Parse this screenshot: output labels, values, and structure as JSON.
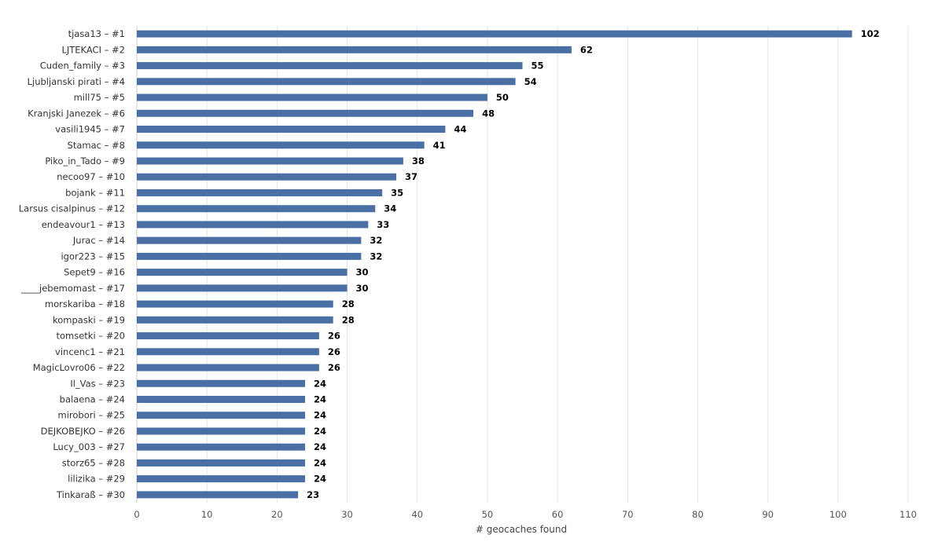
{
  "chart_data": {
    "type": "bar",
    "orientation": "horizontal",
    "categories": [
      "tjasa13 – #1",
      "LJTEKACI – #2",
      "Cuden_family – #3",
      "Ljubljanski pirati – #4",
      "mill75 – #5",
      "Kranjski Janezek – #6",
      "vasili1945 – #7",
      "Stamac – #8",
      "Piko_in_Tado – #9",
      "necoo97 – #10",
      "bojank – #11",
      "Larsus cisalpinus – #12",
      "endeavour1 – #13",
      "Jurac – #14",
      "igor223 – #15",
      "Sepet9 – #16",
      "____jebemomast – #17",
      "morskariba – #18",
      "kompaski – #19",
      "tomsetki – #20",
      "vincenc1 – #21",
      "MagicLovro06 – #22",
      "Il_Vas – #23",
      "balaena – #24",
      "mirobori – #25",
      "DEJKOBEJKO – #26",
      "Lucy_003 – #27",
      "storz65 – #28",
      "lilizika – #29",
      "Tinkaraß – #30"
    ],
    "values": [
      102,
      62,
      55,
      54,
      50,
      48,
      44,
      41,
      38,
      37,
      35,
      34,
      33,
      32,
      32,
      30,
      30,
      28,
      28,
      26,
      26,
      26,
      24,
      24,
      24,
      24,
      24,
      24,
      24,
      23
    ],
    "xlabel": "# geocaches found",
    "xlim": [
      0,
      110
    ],
    "xticks": [
      0,
      10,
      20,
      30,
      40,
      50,
      60,
      70,
      80,
      90,
      100,
      110
    ],
    "grid": true,
    "legend": "none",
    "bar_color": "#4a6fa5",
    "value_labels": true
  }
}
